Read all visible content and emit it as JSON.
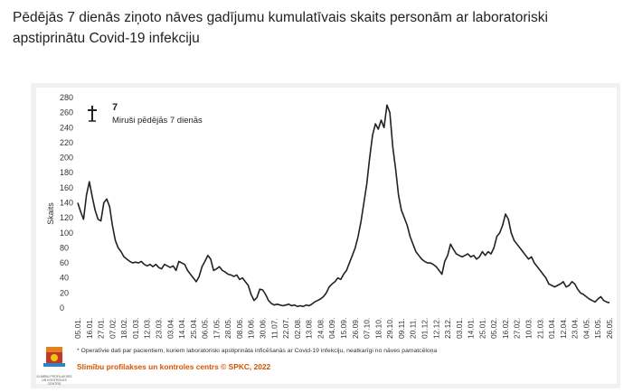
{
  "header": {
    "title": "Pēdējās 7 dienās ziņoto nāves gadījumu kumulatīvais skaits personām ar laboratoriski apstiprinātu Covid-19 infekciju"
  },
  "legend": {
    "value": "7",
    "label": "Miruši pēdējās 7 dienās",
    "icon": "cross-icon"
  },
  "footer": {
    "note": "* Operatīvie dati par pacientiem, kuriem laboratoriski apstiprināta inficēšanās ar Covid-19 infekciju, neatkarīgi no nāves pamatcēloņa",
    "credit": "Slimību profilakses un kontroles centrs © SPKC, 2022",
    "logo_caption": "SLIMĪBU PROFILAKSES UN KONTROLES CENTRS",
    "credit_color": "#d35400"
  },
  "chart_data": {
    "type": "line",
    "title": "",
    "xlabel": "",
    "ylabel": "Skaits",
    "ylim": [
      0,
      280
    ],
    "yticks": [
      0,
      20,
      40,
      60,
      80,
      100,
      120,
      140,
      160,
      180,
      200,
      220,
      240,
      260,
      280
    ],
    "grid": false,
    "line_color": "#222222",
    "xtick_labels": [
      "05.01.",
      "16.01.",
      "27.01.",
      "07.02.",
      "18.02.",
      "01.03.",
      "12.03.",
      "23.03.",
      "03.04.",
      "14.04.",
      "25.04.",
      "06.05.",
      "17.05.",
      "28.05.",
      "08.06.",
      "19.06.",
      "30.06.",
      "11.07.",
      "22.07.",
      "02.08.",
      "13.08.",
      "24.08.",
      "04.09.",
      "15.09.",
      "26.09.",
      "07.10.",
      "18.10.",
      "29.10.",
      "09.11.",
      "20.11.",
      "01.12.",
      "12.12.",
      "23.12.",
      "03.01.",
      "14.01.",
      "25.01.",
      "05.02.",
      "16.02.",
      "27.02.",
      "10.03.",
      "21.03.",
      "01.04.",
      "12.04.",
      "23.04.",
      "04.05.",
      "15.05.",
      "26.05."
    ],
    "series": [
      {
        "values": [
          140,
          128,
          118,
          150,
          168,
          148,
          130,
          118,
          116,
          140,
          145,
          135,
          110,
          90,
          80,
          75,
          68,
          65,
          62,
          60,
          61,
          60,
          62,
          58,
          56,
          58,
          55,
          58,
          54,
          52,
          58,
          56,
          54,
          56,
          50,
          62,
          60,
          58,
          50,
          45,
          40,
          35,
          42,
          55,
          62,
          70,
          65,
          50,
          52,
          55,
          50,
          48,
          45,
          44,
          42,
          44,
          38,
          40,
          35,
          30,
          18,
          10,
          14,
          25,
          24,
          18,
          10,
          6,
          4,
          5,
          4,
          3,
          4,
          5,
          3,
          4,
          2,
          3,
          2,
          4,
          3,
          5,
          8,
          10,
          12,
          15,
          20,
          28,
          32,
          35,
          40,
          38,
          45,
          50,
          60,
          70,
          80,
          95,
          115,
          140,
          165,
          200,
          230,
          245,
          238,
          250,
          240,
          270,
          260,
          215,
          185,
          150,
          130,
          120,
          110,
          95,
          85,
          75,
          70,
          65,
          62,
          60,
          60,
          58,
          55,
          50,
          45,
          62,
          70,
          85,
          78,
          72,
          70,
          68,
          70,
          72,
          68,
          70,
          65,
          68,
          75,
          70,
          75,
          72,
          80,
          95,
          100,
          110,
          125,
          118,
          100,
          90,
          85,
          80,
          75,
          70,
          65,
          68,
          60,
          55,
          50,
          45,
          40,
          32,
          30,
          28,
          30,
          32,
          35,
          28,
          30,
          35,
          32,
          25,
          20,
          18,
          15,
          12,
          10,
          8,
          12,
          15,
          10,
          8,
          7
        ]
      }
    ]
  }
}
